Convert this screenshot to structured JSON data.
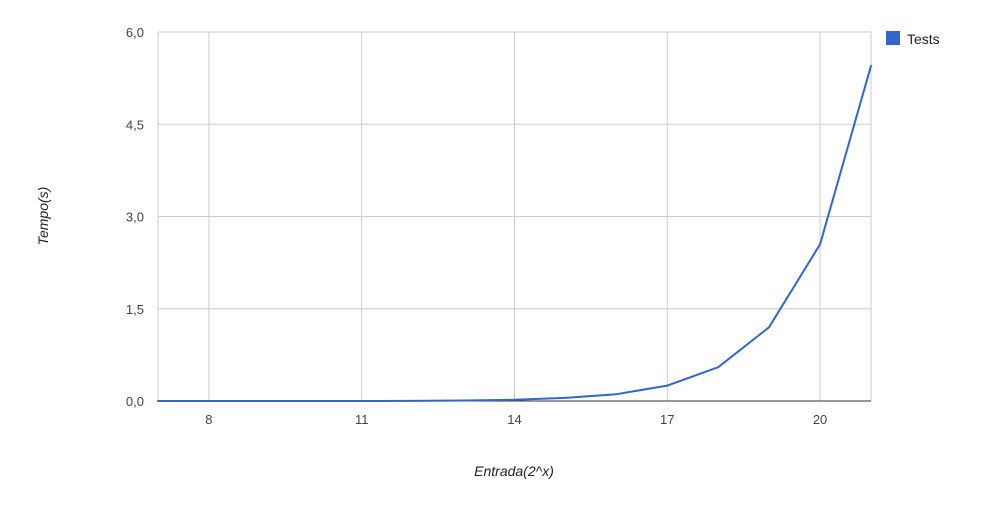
{
  "chart_data": {
    "type": "line",
    "title": "",
    "xlabel": "Entrada(2^x)",
    "ylabel": "Tempo(s)",
    "x": [
      7,
      8,
      9,
      10,
      11,
      12,
      13,
      14,
      15,
      16,
      17,
      18,
      19,
      20,
      21
    ],
    "series": [
      {
        "name": "Tests",
        "color": "#3366cc",
        "values": [
          0.0,
          0.0,
          0.0,
          0.0,
          0.0,
          0.002,
          0.008,
          0.02,
          0.05,
          0.11,
          0.25,
          0.55,
          1.2,
          2.55,
          5.45
        ]
      }
    ],
    "xlim": [
      7,
      21
    ],
    "ylim": [
      0,
      6
    ],
    "x_ticks": [
      8,
      11,
      14,
      17,
      20
    ],
    "x_tick_labels": [
      "8",
      "11",
      "14",
      "17",
      "20"
    ],
    "y_ticks": [
      0,
      1.5,
      3,
      4.5,
      6
    ],
    "y_tick_labels": [
      "0,0",
      "1,5",
      "3,0",
      "4,5",
      "6,0"
    ],
    "grid": true,
    "legend_position": "right-top"
  }
}
